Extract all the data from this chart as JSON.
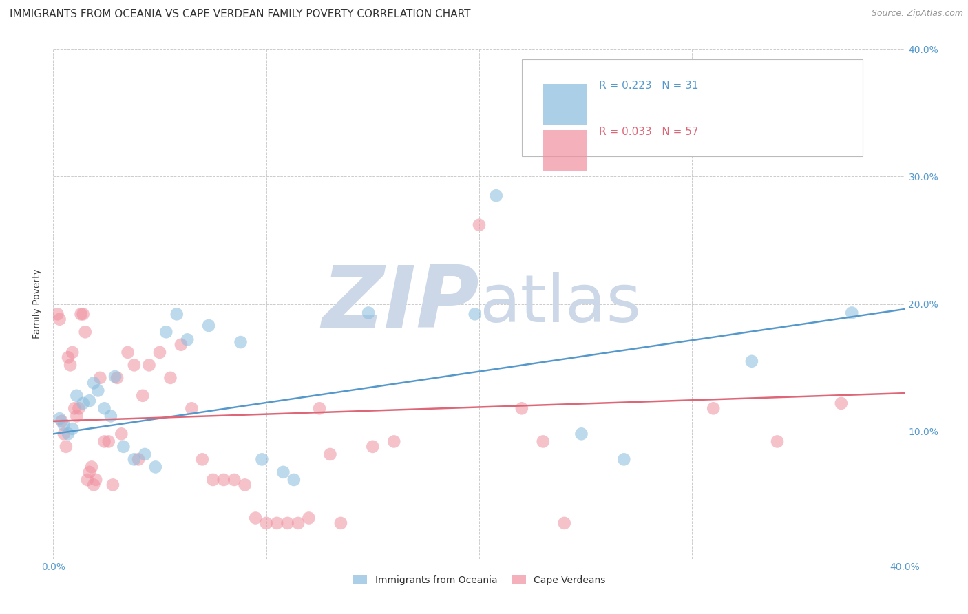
{
  "title": "IMMIGRANTS FROM OCEANIA VS CAPE VERDEAN FAMILY POVERTY CORRELATION CHART",
  "source": "Source: ZipAtlas.com",
  "ylabel": "Family Poverty",
  "xlim": [
    0.0,
    0.4
  ],
  "ylim": [
    0.0,
    0.4
  ],
  "xticks": [
    0.0,
    0.1,
    0.2,
    0.3,
    0.4
  ],
  "yticks": [
    0.1,
    0.2,
    0.3,
    0.4
  ],
  "x_bottom_labels": [
    "0.0%",
    "",
    "",
    "",
    "40.0%"
  ],
  "right_yticklabels": [
    "10.0%",
    "20.0%",
    "30.0%",
    "40.0%"
  ],
  "right_yticks": [
    0.1,
    0.2,
    0.3,
    0.4
  ],
  "watermark_zip": "ZIP",
  "watermark_atlas": "atlas",
  "legend_r1": "R = 0.223   N = 31",
  "legend_r2": "R = 0.033   N = 57",
  "blue_color": "#88bbdd",
  "pink_color": "#f090a0",
  "blue_line_color": "#5599cc",
  "pink_line_color": "#dd6677",
  "blue_scatter": [
    [
      0.003,
      0.11
    ],
    [
      0.005,
      0.105
    ],
    [
      0.007,
      0.098
    ],
    [
      0.009,
      0.102
    ],
    [
      0.011,
      0.128
    ],
    [
      0.014,
      0.122
    ],
    [
      0.017,
      0.124
    ],
    [
      0.019,
      0.138
    ],
    [
      0.021,
      0.132
    ],
    [
      0.024,
      0.118
    ],
    [
      0.027,
      0.112
    ],
    [
      0.029,
      0.143
    ],
    [
      0.033,
      0.088
    ],
    [
      0.038,
      0.078
    ],
    [
      0.043,
      0.082
    ],
    [
      0.048,
      0.072
    ],
    [
      0.053,
      0.178
    ],
    [
      0.058,
      0.192
    ],
    [
      0.063,
      0.172
    ],
    [
      0.073,
      0.183
    ],
    [
      0.088,
      0.17
    ],
    [
      0.098,
      0.078
    ],
    [
      0.108,
      0.068
    ],
    [
      0.113,
      0.062
    ],
    [
      0.148,
      0.193
    ],
    [
      0.198,
      0.192
    ],
    [
      0.208,
      0.285
    ],
    [
      0.248,
      0.098
    ],
    [
      0.268,
      0.078
    ],
    [
      0.328,
      0.155
    ],
    [
      0.375,
      0.193
    ]
  ],
  "pink_scatter": [
    [
      0.002,
      0.192
    ],
    [
      0.003,
      0.188
    ],
    [
      0.004,
      0.108
    ],
    [
      0.005,
      0.098
    ],
    [
      0.006,
      0.088
    ],
    [
      0.007,
      0.158
    ],
    [
      0.008,
      0.152
    ],
    [
      0.009,
      0.162
    ],
    [
      0.01,
      0.118
    ],
    [
      0.011,
      0.112
    ],
    [
      0.012,
      0.118
    ],
    [
      0.013,
      0.192
    ],
    [
      0.014,
      0.192
    ],
    [
      0.015,
      0.178
    ],
    [
      0.016,
      0.062
    ],
    [
      0.017,
      0.068
    ],
    [
      0.018,
      0.072
    ],
    [
      0.019,
      0.058
    ],
    [
      0.02,
      0.062
    ],
    [
      0.022,
      0.142
    ],
    [
      0.024,
      0.092
    ],
    [
      0.026,
      0.092
    ],
    [
      0.028,
      0.058
    ],
    [
      0.03,
      0.142
    ],
    [
      0.032,
      0.098
    ],
    [
      0.035,
      0.162
    ],
    [
      0.038,
      0.152
    ],
    [
      0.04,
      0.078
    ],
    [
      0.042,
      0.128
    ],
    [
      0.045,
      0.152
    ],
    [
      0.05,
      0.162
    ],
    [
      0.055,
      0.142
    ],
    [
      0.06,
      0.168
    ],
    [
      0.065,
      0.118
    ],
    [
      0.07,
      0.078
    ],
    [
      0.075,
      0.062
    ],
    [
      0.08,
      0.062
    ],
    [
      0.085,
      0.062
    ],
    [
      0.09,
      0.058
    ],
    [
      0.095,
      0.032
    ],
    [
      0.1,
      0.028
    ],
    [
      0.105,
      0.028
    ],
    [
      0.11,
      0.028
    ],
    [
      0.115,
      0.028
    ],
    [
      0.12,
      0.032
    ],
    [
      0.125,
      0.118
    ],
    [
      0.13,
      0.082
    ],
    [
      0.135,
      0.028
    ],
    [
      0.15,
      0.088
    ],
    [
      0.16,
      0.092
    ],
    [
      0.2,
      0.262
    ],
    [
      0.22,
      0.118
    ],
    [
      0.23,
      0.092
    ],
    [
      0.24,
      0.028
    ],
    [
      0.31,
      0.118
    ],
    [
      0.34,
      0.092
    ],
    [
      0.37,
      0.122
    ]
  ],
  "blue_line_x": [
    0.0,
    0.4
  ],
  "blue_line_y": [
    0.098,
    0.196
  ],
  "pink_line_x": [
    0.0,
    0.4
  ],
  "pink_line_y": [
    0.108,
    0.13
  ],
  "grid_color": "#cccccc",
  "watermark_color": "#ccd8e8",
  "background_color": "#ffffff",
  "title_fontsize": 11,
  "axis_label_fontsize": 10,
  "tick_fontsize": 10,
  "tick_color": "#5599cc",
  "legend_text_color": "#5599cc",
  "legend_n_color": "#5599cc"
}
